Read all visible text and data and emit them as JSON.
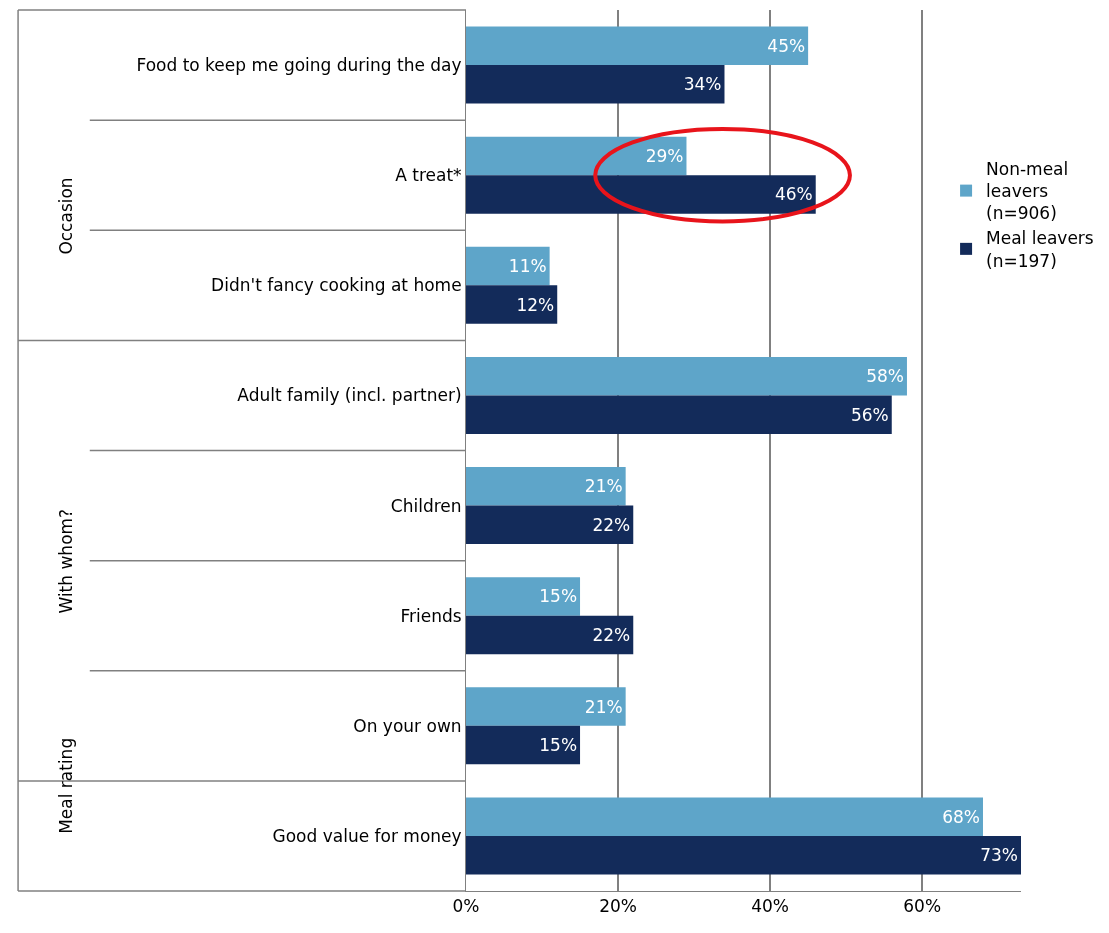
{
  "chart_data": {
    "type": "bar",
    "orientation": "horizontal",
    "categories": [
      "Food to keep me going during the day",
      "A treat*",
      "Didn't fancy cooking at home",
      "Adult family (incl. partner)",
      "Children",
      "Friends",
      "On your own",
      "Good value for money"
    ],
    "series": [
      {
        "name": "Non-meal leavers (n=906)",
        "color": "#5ea5c9",
        "values": [
          45,
          29,
          11,
          58,
          21,
          15,
          21,
          68
        ],
        "value_labels": [
          "45%",
          "29%",
          "11%",
          "58%",
          "21%",
          "15%",
          "21%",
          "68%"
        ]
      },
      {
        "name": "Meal leavers (n=197)",
        "color": "#132b5a",
        "values": [
          34,
          46,
          12,
          56,
          22,
          22,
          15,
          73
        ],
        "value_labels": [
          "34%",
          "46%",
          "12%",
          "56%",
          "22%",
          "22%",
          "15%",
          "73%"
        ]
      }
    ],
    "xlim": [
      0,
      73
    ],
    "xticks": [
      {
        "value": 0,
        "label": "0%"
      },
      {
        "value": 20,
        "label": "20%"
      },
      {
        "value": 40,
        "label": "40%"
      },
      {
        "value": 60,
        "label": "60%"
      }
    ],
    "grid": "x",
    "legend": "right",
    "annotations": [
      "Occasion",
      "With whom?",
      "Meal rating"
    ]
  }
}
